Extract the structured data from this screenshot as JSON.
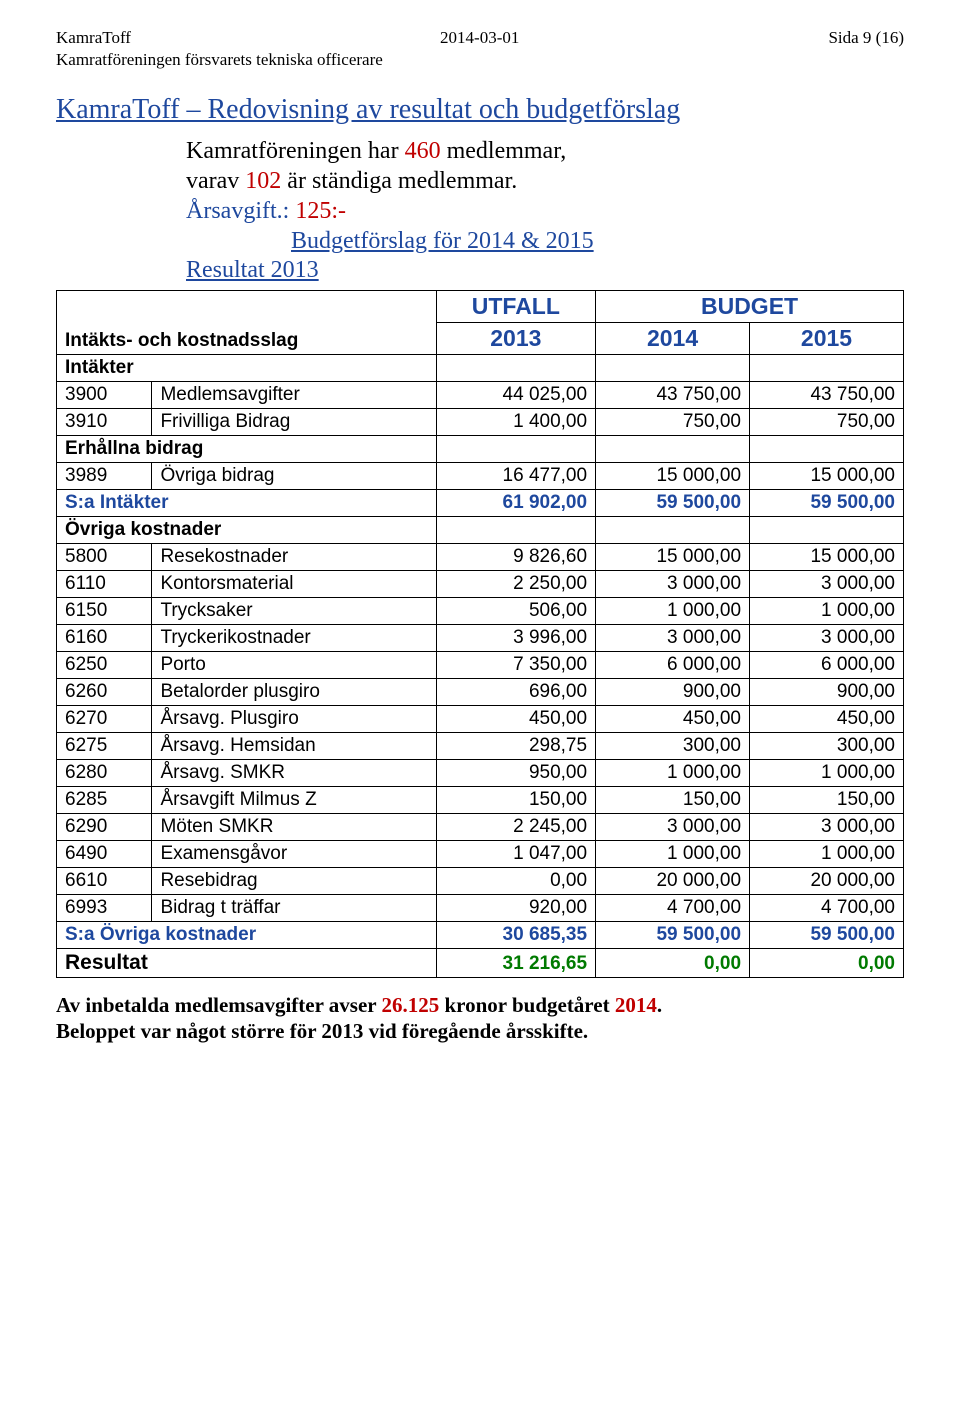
{
  "header": {
    "left": "KamraToff",
    "center": "2014-03-01",
    "right": "Sida 9 (16)",
    "sub": "Kamratföreningen försvarets tekniska officerare"
  },
  "title": "KamraToff – Redovisning av resultat och budgetförslag",
  "intro": {
    "line1_pre": "Kamratföreningen har ",
    "line1_num1": "460",
    "line1_mid": " medlemmar,",
    "line2_pre": "varav ",
    "line2_num": "102",
    "line2_post": " är ständiga medlemmar.",
    "line3_pre": "Årsavgift.:  ",
    "line3_amt": "125:-"
  },
  "subtitles": {
    "budget": "Budgetförslag för 2014 & 2015",
    "resultat": "Resultat 2013"
  },
  "table": {
    "top_headers": {
      "utfall": "UTFALL",
      "budget": "BUDGET"
    },
    "col_label": "Intäkts- och kostnadsslag",
    "years": [
      "2013",
      "2014",
      "2015"
    ],
    "sections": [
      {
        "label": "Intäkter",
        "rows": [
          {
            "code": "3900",
            "name": "Medlemsavgifter",
            "vals": [
              "44 025,00",
              "43 750,00",
              "43 750,00"
            ]
          },
          {
            "code": "3910",
            "name": "Frivilliga Bidrag",
            "vals": [
              "1 400,00",
              "750,00",
              "750,00"
            ]
          }
        ]
      },
      {
        "label": "Erhållna bidrag",
        "rows": [
          {
            "code": "3989",
            "name": "Övriga bidrag",
            "vals": [
              "16 477,00",
              "15 000,00",
              "15 000,00"
            ]
          }
        ]
      }
    ],
    "sum_intakter": {
      "label": "S:a Intäkter",
      "vals": [
        "61 902,00",
        "59 500,00",
        "59 500,00"
      ]
    },
    "ov_kostnader_label": "Övriga kostnader",
    "ov_rows": [
      {
        "code": "5800",
        "name": "Resekostnader",
        "vals": [
          "9 826,60",
          "15 000,00",
          "15 000,00"
        ]
      },
      {
        "code": "6110",
        "name": "Kontorsmaterial",
        "vals": [
          "2 250,00",
          "3 000,00",
          "3 000,00"
        ]
      },
      {
        "code": "6150",
        "name": "Trycksaker",
        "vals": [
          "506,00",
          "1 000,00",
          "1 000,00"
        ]
      },
      {
        "code": "6160",
        "name": "Tryckerikostnader",
        "vals": [
          "3 996,00",
          "3 000,00",
          "3 000,00"
        ]
      },
      {
        "code": "6250",
        "name": "Porto",
        "vals": [
          "7 350,00",
          "6 000,00",
          "6 000,00"
        ]
      },
      {
        "code": "6260",
        "name": "Betalorder plusgiro",
        "vals": [
          "696,00",
          "900,00",
          "900,00"
        ]
      },
      {
        "code": "6270",
        "name": "Årsavg. Plusgiro",
        "vals": [
          "450,00",
          "450,00",
          "450,00"
        ]
      },
      {
        "code": "6275",
        "name": "Årsavg. Hemsidan",
        "vals": [
          "298,75",
          "300,00",
          "300,00"
        ]
      },
      {
        "code": "6280",
        "name": "Årsavg. SMKR",
        "vals": [
          "950,00",
          "1 000,00",
          "1 000,00"
        ]
      },
      {
        "code": "6285",
        "name": "Årsavgift Milmus Z",
        "vals": [
          "150,00",
          "150,00",
          "150,00"
        ]
      },
      {
        "code": "6290",
        "name": "Möten SMKR",
        "vals": [
          "2 245,00",
          "3 000,00",
          "3 000,00"
        ]
      },
      {
        "code": "6490",
        "name": "Examensgåvor",
        "vals": [
          "1 047,00",
          "1 000,00",
          "1 000,00"
        ]
      },
      {
        "code": "6610",
        "name": "Resebidrag",
        "vals": [
          "0,00",
          "20 000,00",
          "20 000,00"
        ]
      },
      {
        "code": "6993",
        "name": "Bidrag t träffar",
        "vals": [
          "920,00",
          "4 700,00",
          "4 700,00"
        ]
      }
    ],
    "sum_ovriga": {
      "label": "S:a Övriga kostnader",
      "vals": [
        "30 685,35",
        "59 500,00",
        "59 500,00"
      ]
    },
    "resultat": {
      "label": "Resultat",
      "vals": [
        "31 216,65",
        "0,00",
        "0,00"
      ]
    }
  },
  "footer": {
    "l1_pre": "Av inbetalda medlemsavgifter avser ",
    "l1_amt": "26.125",
    "l1_mid": " kronor budgetåret ",
    "l1_year": "2014",
    "l1_post": ".",
    "l2": "Beloppet var något större för 2013 vid föregående årsskifte."
  },
  "style": {
    "blue": "#1e489e",
    "red": "#c00000",
    "green": "#007a00"
  }
}
